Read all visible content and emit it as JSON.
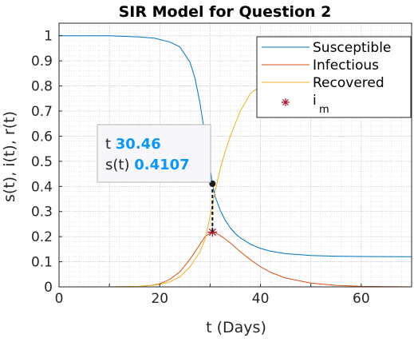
{
  "chart_data": {
    "type": "line",
    "title": "SIR Model for Question 2",
    "xlabel": "t (Days)",
    "ylabel": "s(t), i(t), r(t)",
    "xlim": [
      0,
      70
    ],
    "ylim": [
      0,
      1.05
    ],
    "xticks": [
      "0",
      "20",
      "40",
      "60"
    ],
    "yticks": [
      "0",
      "0.1",
      "0.2",
      "0.3",
      "0.4",
      "0.5",
      "0.6",
      "0.7",
      "0.8",
      "0.9",
      "1"
    ],
    "grid": "major and minor, dotted",
    "legend_position": "top-right",
    "series": [
      {
        "name": "Susceptible",
        "color": "#0072bd",
        "x": [
          0,
          10,
          16,
          19,
          22,
          24,
          26,
          27,
          28,
          29,
          30,
          30.46,
          31,
          32,
          33,
          34,
          35,
          36,
          38,
          40,
          42,
          45,
          50,
          55,
          60,
          70
        ],
        "y": [
          1.0,
          1.0,
          0.995,
          0.99,
          0.975,
          0.955,
          0.895,
          0.83,
          0.73,
          0.6,
          0.47,
          0.4107,
          0.36,
          0.305,
          0.265,
          0.235,
          0.212,
          0.195,
          0.17,
          0.153,
          0.142,
          0.132,
          0.125,
          0.122,
          0.121,
          0.12
        ]
      },
      {
        "name": "Infectious",
        "color": "#d95319",
        "x": [
          0,
          10,
          16,
          18,
          20,
          22,
          24,
          26,
          28,
          29,
          30,
          30.46,
          31,
          32,
          34,
          36,
          38,
          40,
          42,
          45,
          50,
          55,
          60,
          70
        ],
        "y": [
          0,
          0.0,
          0.002,
          0.005,
          0.012,
          0.03,
          0.06,
          0.11,
          0.17,
          0.2,
          0.215,
          0.218,
          0.215,
          0.205,
          0.175,
          0.14,
          0.108,
          0.08,
          0.058,
          0.035,
          0.015,
          0.006,
          0.002,
          0.0
        ]
      },
      {
        "name": "Recovered",
        "color": "#edb120",
        "x": [
          0,
          10,
          16,
          18,
          20,
          22,
          24,
          26,
          28,
          29,
          30,
          31,
          32,
          33,
          34,
          35,
          36,
          38,
          40,
          42,
          45,
          50,
          55,
          60,
          70
        ],
        "y": [
          0,
          0.0,
          0.002,
          0.005,
          0.01,
          0.02,
          0.04,
          0.08,
          0.14,
          0.19,
          0.28,
          0.38,
          0.47,
          0.54,
          0.6,
          0.65,
          0.7,
          0.77,
          0.8,
          0.82,
          0.845,
          0.865,
          0.875,
          0.878,
          0.88
        ]
      },
      {
        "name": "i",
        "name_subscript": "m",
        "color": "#a2142f",
        "marker": "asterisk",
        "x": [
          30.46
        ],
        "y": [
          0.218
        ]
      }
    ],
    "datatip": {
      "x_label": "t",
      "x_value": "30.46",
      "y_label": "s(t)",
      "y_value": "0.4107",
      "x": 30.46,
      "y": 0.4107
    }
  }
}
